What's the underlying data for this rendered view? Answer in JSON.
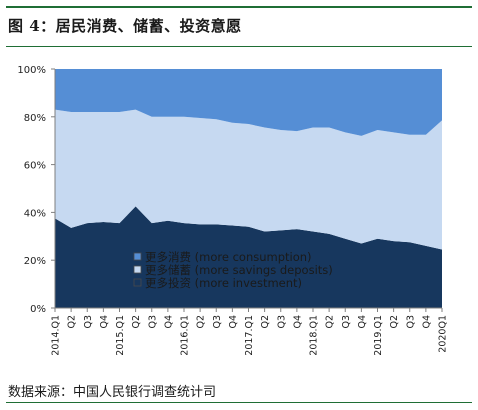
{
  "header": {
    "title": "图 4：居民消费、储蓄、投资意愿"
  },
  "footer": {
    "source": "数据来源：中国人民银行调查统计司"
  },
  "chart_data": {
    "type": "area",
    "stacked": true,
    "percent": true,
    "categories": [
      "2014.Q1",
      "Q2",
      "Q3",
      "Q4",
      "2015.Q1",
      "Q2",
      "Q3",
      "Q4",
      "2016.Q1",
      "Q2",
      "Q3",
      "Q4",
      "2017.Q1",
      "Q2",
      "Q3",
      "Q4",
      "2018.Q1",
      "Q2",
      "Q3",
      "Q4",
      "2019.Q1",
      "Q2",
      "Q3",
      "Q4",
      "2020Q1"
    ],
    "ylim": [
      0,
      100
    ],
    "yticks": [
      "0%",
      "20%",
      "40%",
      "60%",
      "80%",
      "100%"
    ],
    "series": [
      {
        "name": "更多投资 (more investment)",
        "color": "#17375e",
        "values": [
          37.5,
          33.5,
          35.5,
          36,
          35.5,
          42.5,
          35.5,
          36.5,
          35.5,
          35,
          35,
          34.5,
          34,
          32,
          32.5,
          33,
          32,
          31,
          29,
          27,
          29,
          28,
          27.5,
          26,
          24.5
        ]
      },
      {
        "name": "更多储蓄 (more savings deposits)",
        "color": "#c6d9f1",
        "values": [
          45.5,
          48.5,
          46.5,
          46,
          46.5,
          40.5,
          44.5,
          43.5,
          44.5,
          44.5,
          44,
          43,
          43,
          43.5,
          42,
          41,
          43.5,
          44.5,
          44.5,
          45,
          45.5,
          45.5,
          45,
          46.5,
          54
        ]
      },
      {
        "name": "更多消费 (more consumption)",
        "color": "#558ed5",
        "values": [
          17,
          18,
          18,
          18,
          18,
          17,
          20,
          20,
          20,
          20.5,
          21,
          22.5,
          23,
          24.5,
          25.5,
          26,
          24.5,
          24.5,
          26.5,
          28,
          25.5,
          26.5,
          27.5,
          27.5,
          21.5
        ]
      }
    ],
    "legend": [
      {
        "name": "更多消费 (more consumption)",
        "color": "#558ed5"
      },
      {
        "name": "更多储蓄 (more savings deposits)",
        "color": "#c6d9f1"
      },
      {
        "name": "更多投资 (more investment)",
        "color": "#17375e"
      }
    ],
    "legend_position": "bottom-left (inside plot)"
  }
}
